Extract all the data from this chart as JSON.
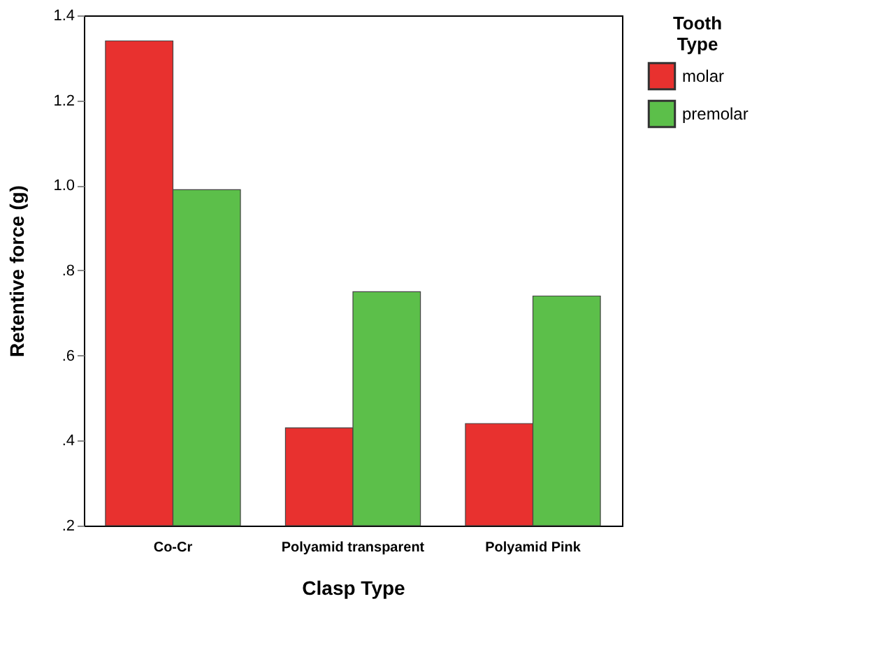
{
  "chart_data": {
    "type": "bar",
    "xlabel": "Clasp Type",
    "ylabel": "Retentive force (g)",
    "legend_title": "Tooth Type",
    "legend": "right",
    "grid": false,
    "categories": [
      "Co-Cr",
      "Polyamid transparent",
      "Polyamid Pink"
    ],
    "series": [
      {
        "name": "molar",
        "color": "#e8312f",
        "values": [
          1.34,
          0.43,
          0.44
        ]
      },
      {
        "name": "premolar",
        "color": "#5cbf4a",
        "values": [
          0.99,
          0.75,
          0.74
        ]
      }
    ],
    "ylim": [
      0.2,
      1.4
    ],
    "yticks": [
      {
        "value": 0.2,
        "label": ".2"
      },
      {
        "value": 0.4,
        "label": ".4"
      },
      {
        "value": 0.6,
        "label": ".6"
      },
      {
        "value": 0.8,
        "label": ".8"
      },
      {
        "value": 1.0,
        "label": "1.0"
      },
      1.2,
      1.4
    ]
  }
}
